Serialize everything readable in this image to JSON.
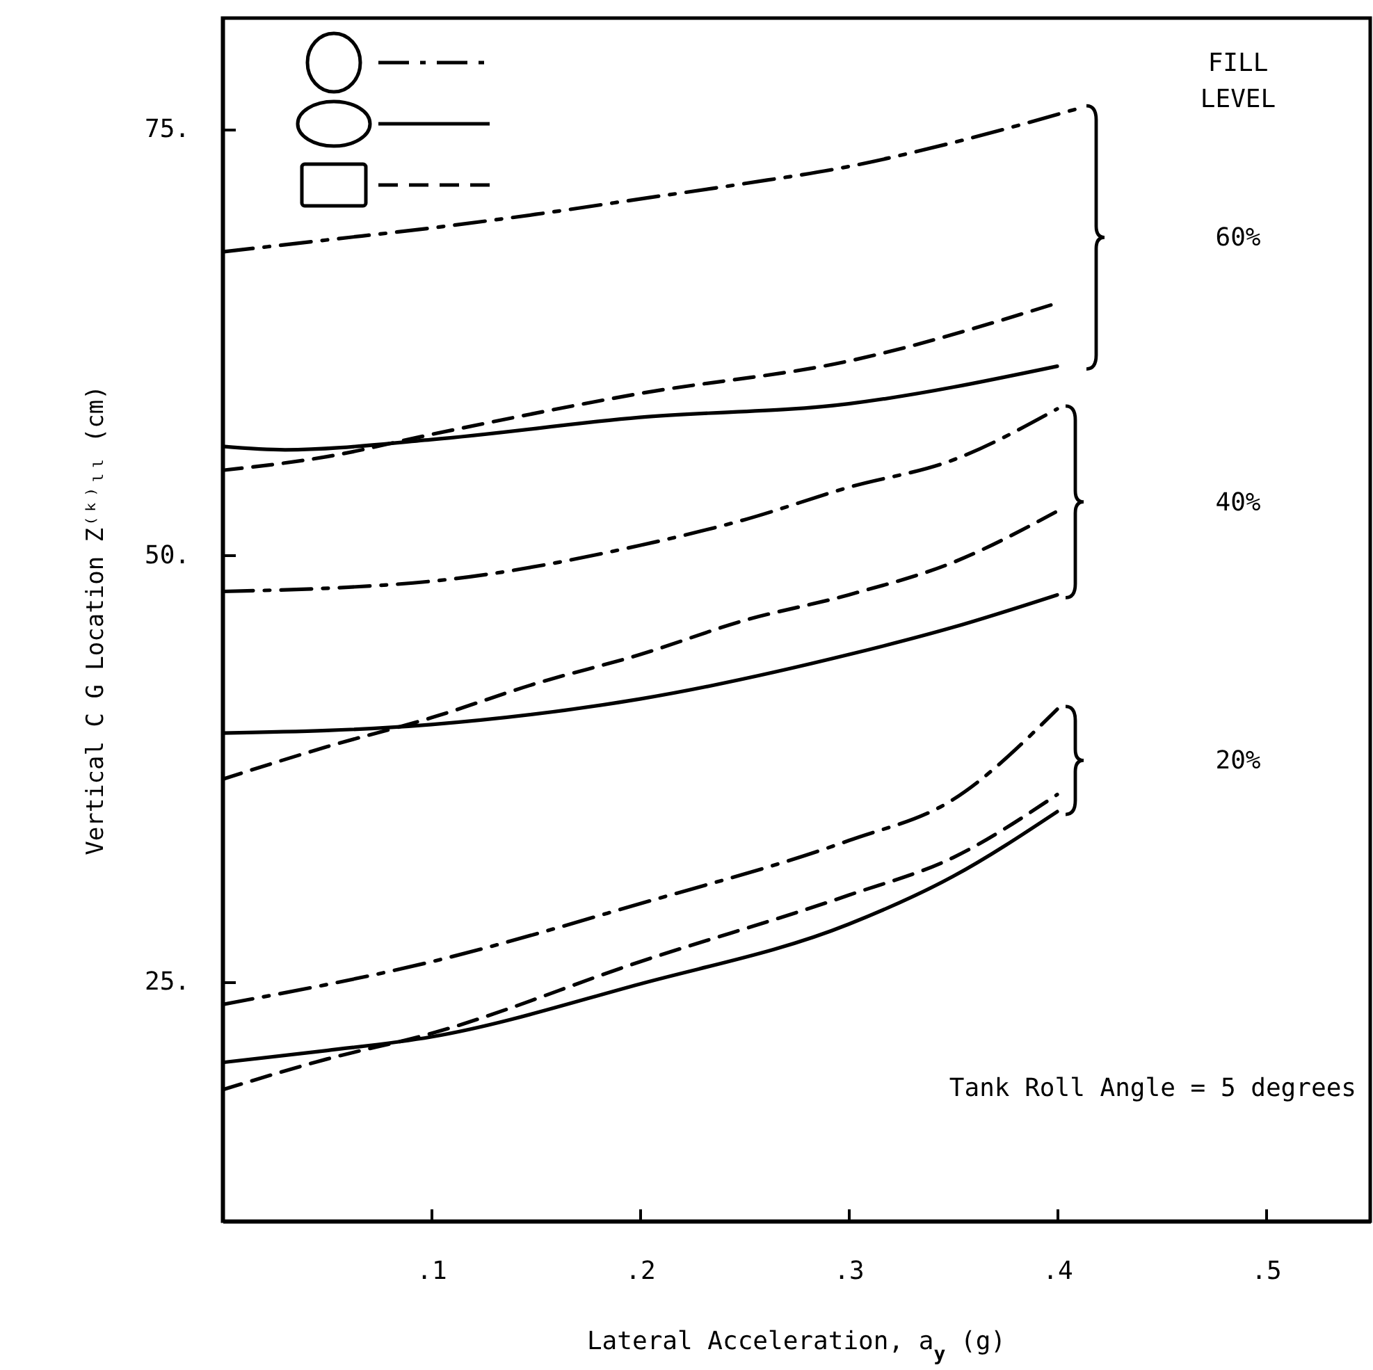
{
  "chart_data": {
    "type": "line",
    "xlabel": "Lateral Acceleration, a$_{y}$ (g)",
    "ylabel": "Vertical C G Location Z⁽ᵏ⁾ₗₗ (cm)",
    "xlim": [
      0,
      0.55
    ],
    "ylim": [
      11,
      81.5
    ],
    "xticks": [
      {
        "value": 0.1,
        "label": ".1"
      },
      {
        "value": 0.2,
        "label": ".2"
      },
      {
        "value": 0.3,
        "label": ".3"
      },
      {
        "value": 0.4,
        "label": ".4"
      },
      {
        "value": 0.5,
        "label": ".5"
      }
    ],
    "yticks": [
      {
        "value": 25,
        "label": "25."
      },
      {
        "value": 50,
        "label": "50."
      },
      {
        "value": 75,
        "label": "75."
      }
    ],
    "grid": false,
    "series": [
      {
        "color": "#000000",
        "line_style": "dashdot",
        "x": [
          0,
          0.05,
          0.1,
          0.15,
          0.2,
          0.25,
          0.3,
          0.35,
          0.41
        ],
        "values": [
          67.8,
          68.5,
          69.2,
          70.0,
          70.9,
          71.8,
          72.8,
          74.2,
          76.2
        ]
      },
      {
        "color": "#000000",
        "line_style": "solid",
        "x": [
          0,
          0.03,
          0.1,
          0.2,
          0.3,
          0.4
        ],
        "values": [
          56.4,
          56.2,
          56.8,
          58.1,
          58.9,
          61.1
        ]
      },
      {
        "color": "#000000",
        "line_style": "dashed",
        "x": [
          0,
          0.05,
          0.1,
          0.2,
          0.3,
          0.4
        ],
        "values": [
          55.0,
          55.8,
          57.1,
          59.5,
          61.4,
          64.8
        ]
      },
      {
        "color": "#000000",
        "line_style": "dashdot",
        "x": [
          0,
          0.1,
          0.2,
          0.25,
          0.3,
          0.35,
          0.4
        ],
        "values": [
          47.9,
          48.5,
          50.6,
          52.1,
          54.0,
          55.6,
          58.6
        ]
      },
      {
        "color": "#000000",
        "line_style": "solid",
        "x": [
          0,
          0.1,
          0.2,
          0.3,
          0.35,
          0.4
        ],
        "values": [
          39.6,
          40.1,
          41.6,
          44.2,
          45.8,
          47.7
        ]
      },
      {
        "color": "#000000",
        "line_style": "dashed",
        "x": [
          0,
          0.05,
          0.1,
          0.15,
          0.2,
          0.25,
          0.3,
          0.35,
          0.4
        ],
        "values": [
          36.9,
          38.8,
          40.5,
          42.5,
          44.2,
          46.2,
          47.7,
          49.6,
          52.6
        ]
      },
      {
        "color": "#000000",
        "line_style": "dashdot",
        "x": [
          0,
          0.1,
          0.2,
          0.3,
          0.35,
          0.4
        ],
        "values": [
          23.7,
          26.2,
          29.6,
          33.3,
          35.7,
          41.0
        ]
      },
      {
        "color": "#000000",
        "line_style": "solid",
        "x": [
          0,
          0.05,
          0.1,
          0.2,
          0.3,
          0.35,
          0.4
        ],
        "values": [
          20.3,
          21.0,
          21.8,
          24.9,
          28.4,
          31.2,
          35.0
        ]
      },
      {
        "color": "#000000",
        "line_style": "dashed",
        "x": [
          0,
          0.05,
          0.1,
          0.2,
          0.3,
          0.35,
          0.4
        ],
        "values": [
          18.7,
          20.5,
          22.0,
          26.2,
          30.1,
          32.3,
          36.0
        ]
      }
    ],
    "annotations": [
      "FILL LEVEL",
      "60%",
      "40%",
      "20%",
      "Tank Roll Angle = 5 degrees"
    ]
  }
}
